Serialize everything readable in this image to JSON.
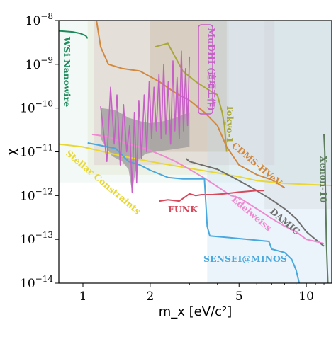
{
  "chart_data": {
    "type": "line",
    "title": "",
    "xlabel": "m_x [eV/c²]",
    "ylabel": "χ",
    "x_scale": "log",
    "y_scale": "log",
    "xlim": [
      0.78,
      13
    ],
    "ylim": [
      1e-14,
      1e-08
    ],
    "grid": false,
    "x_ticks": [
      {
        "value": 1,
        "label": "1"
      },
      {
        "value": 2,
        "label": "2"
      },
      {
        "value": 5,
        "label": "5"
      },
      {
        "value": 10,
        "label": "10"
      }
    ],
    "y_ticks": [
      {
        "value": 1e-08,
        "base": "10",
        "exp": "−8"
      },
      {
        "value": 1e-09,
        "base": "10",
        "exp": "−9"
      },
      {
        "value": 1e-10,
        "base": "10",
        "exp": "−10"
      },
      {
        "value": 1e-11,
        "base": "10",
        "exp": "−11"
      },
      {
        "value": 1e-12,
        "base": "10",
        "exp": "−12"
      },
      {
        "value": 1e-13,
        "base": "10",
        "exp": "−13"
      },
      {
        "value": 1e-14,
        "base": "10",
        "exp": "−14"
      }
    ],
    "excluded_regions": [
      {
        "color": "#2e9c6a",
        "opacity": 0.06,
        "x": [
          0.78,
          13
        ],
        "y_low": 2e-12
      },
      {
        "color": "#d1d5a8",
        "opacity": 0.22,
        "x": [
          1.05,
          4.5
        ],
        "y_low": 3e-12
      },
      {
        "color": "#c9a0a8",
        "opacity": 0.2,
        "x": [
          1.12,
          7.2
        ],
        "y_low": 5e-12
      },
      {
        "color": "#b08c70",
        "opacity": 0.22,
        "x": [
          2.0,
          4.4
        ],
        "y_low": 1e-11
      },
      {
        "color": "#c3bcb4",
        "opacity": 0.22,
        "x": [
          6.5,
          13
        ],
        "y_low": 5e-13
      },
      {
        "color": "#bcd9ef",
        "opacity": 0.3,
        "x": [
          3.6,
          13
        ],
        "y_low": 1e-14
      }
    ],
    "series": [
      {
        "name": "WSi Nanowire",
        "color": "#1d8a5c",
        "points": [
          [
            0.78,
            5.8e-09
          ],
          [
            0.9,
            5.5e-09
          ],
          [
            0.97,
            5.1e-09
          ],
          [
            1.03,
            4.5e-09
          ],
          [
            1.05,
            3.9e-09
          ]
        ]
      },
      {
        "name": "Tokyo-1",
        "color": "#a8a83a",
        "points": [
          [
            2.1,
            2.5e-09
          ],
          [
            2.4,
            3e-09
          ],
          [
            2.8,
            7e-10
          ],
          [
            3.2,
            4e-10
          ],
          [
            3.5,
            3e-10
          ],
          [
            3.7,
            2.5e-10
          ],
          [
            4.0,
            2e-10
          ],
          [
            4.2,
            8e-11
          ],
          [
            4.3,
            4e-11
          ],
          [
            4.4,
            1e-11
          ]
        ]
      },
      {
        "name": "CDMS-HVeV",
        "color": "#d2883e",
        "points": [
          [
            1.15,
            1e-08
          ],
          [
            1.2,
            2.5e-09
          ],
          [
            1.3,
            1e-09
          ],
          [
            1.5,
            8e-10
          ],
          [
            1.8,
            7e-10
          ],
          [
            2.2,
            4e-10
          ],
          [
            2.6,
            2.2e-10
          ],
          [
            3.0,
            1.5e-10
          ],
          [
            3.5,
            8e-11
          ],
          [
            4.0,
            4e-11
          ],
          [
            4.4,
            1.3e-11
          ],
          [
            5.0,
            5e-12
          ],
          [
            6.0,
            3e-12
          ],
          [
            7.0,
            2.3e-12
          ],
          [
            8.0,
            1.5e-12
          ]
        ]
      },
      {
        "name": "Stellar Constraints",
        "color": "#e8d735",
        "points": [
          [
            0.78,
            1.5e-11
          ],
          [
            1.0,
            1.3e-11
          ],
          [
            1.5,
            8e-12
          ],
          [
            2.0,
            6e-12
          ],
          [
            3.0,
            4.2e-12
          ],
          [
            4.0,
            3.3e-12
          ],
          [
            5.0,
            2.7e-12
          ],
          [
            6.0,
            2.2e-12
          ],
          [
            8.0,
            1.9e-12
          ],
          [
            10.0,
            1.8e-12
          ],
          [
            13.0,
            1.7e-12
          ]
        ]
      },
      {
        "name": "Xenon-10",
        "color": "#5e7d5e",
        "points": [
          [
            12.5,
            1e-14
          ],
          [
            12.4,
            3e-14
          ],
          [
            12.3,
            1e-13
          ],
          [
            12.2,
            1e-12
          ],
          [
            12.1,
            1e-11
          ],
          [
            12.0,
            2.5e-11
          ]
        ]
      },
      {
        "name": "DAMIC",
        "color": "#6f6f6f",
        "points": [
          [
            2.9,
            7e-12
          ],
          [
            3.0,
            6e-12
          ],
          [
            4.0,
            4e-12
          ],
          [
            5.0,
            2.2e-12
          ],
          [
            6.0,
            1.3e-12
          ],
          [
            7.0,
            8e-13
          ],
          [
            8.0,
            5e-13
          ],
          [
            9.0,
            3e-13
          ],
          [
            10.0,
            1.5e-13
          ],
          [
            11.0,
            1e-13
          ],
          [
            12.0,
            7e-14
          ]
        ]
      },
      {
        "name": "Edelweiss",
        "color": "#ee8ad0",
        "points": [
          [
            1.1,
            2.5e-11
          ],
          [
            1.3,
            2.2e-11
          ],
          [
            1.6,
            1.5e-11
          ],
          [
            1.9,
            1.2e-11
          ],
          [
            2.3,
            8e-12
          ],
          [
            2.6,
            6e-12
          ],
          [
            3.0,
            4e-12
          ],
          [
            3.5,
            2.5e-12
          ],
          [
            4.0,
            1.6e-12
          ],
          [
            4.6,
            1e-12
          ],
          [
            5.0,
            9e-13
          ],
          [
            6.0,
            5e-13
          ],
          [
            7.0,
            3e-13
          ],
          [
            8.0,
            2e-13
          ],
          [
            9.0,
            1.5e-13
          ],
          [
            10.0,
            1e-13
          ],
          [
            11.0,
            9e-14
          ],
          [
            12.0,
            8e-14
          ]
        ]
      },
      {
        "name": "FUNK",
        "color": "#d64a5c",
        "points": [
          [
            2.2,
            7.5e-13
          ],
          [
            2.4,
            8e-13
          ],
          [
            2.7,
            7.5e-13
          ],
          [
            3.0,
            1.1e-12
          ],
          [
            3.2,
            1e-12
          ],
          [
            3.4,
            1.05e-12
          ],
          [
            3.8,
            1.05e-12
          ],
          [
            4.3,
            1.1e-12
          ],
          [
            5.0,
            1.2e-12
          ],
          [
            6.0,
            1.3e-12
          ],
          [
            6.5,
            1.3e-12
          ]
        ]
      },
      {
        "name": "SENSEI@MINOS",
        "color": "#4aa8de",
        "points": [
          [
            1.05,
            1.6e-11
          ],
          [
            1.4,
            1.2e-11
          ],
          [
            1.6,
            6e-12
          ],
          [
            1.8,
            5e-12
          ],
          [
            2.0,
            3.8e-12
          ],
          [
            2.4,
            2.6e-12
          ],
          [
            2.8,
            2.4e-12
          ],
          [
            3.5,
            2.4e-12
          ],
          [
            3.6,
            2e-13
          ],
          [
            3.7,
            1.2e-13
          ],
          [
            4.5,
            1.1e-13
          ],
          [
            5.5,
            1e-13
          ],
          [
            6.8,
            9e-14
          ],
          [
            7.0,
            6e-14
          ],
          [
            8.0,
            5e-14
          ],
          [
            8.6,
            3.5e-14
          ],
          [
            9.0,
            2e-14
          ],
          [
            9.3,
            1e-14
          ]
        ]
      },
      {
        "name": "MuDHI (這項工作)",
        "color": "#c65fc6",
        "points": [
          [
            1.2,
            1.1e-10
          ],
          [
            1.28,
            6e-12
          ],
          [
            1.33,
            3e-10
          ],
          [
            1.38,
            1.5e-11
          ],
          [
            1.42,
            2e-10
          ],
          [
            1.47,
            5e-12
          ],
          [
            1.52,
            1.2e-10
          ],
          [
            1.57,
            1e-11
          ],
          [
            1.62,
            4e-11
          ],
          [
            1.66,
            1.2e-12
          ],
          [
            1.7,
            8e-11
          ],
          [
            1.74,
            2e-12
          ],
          [
            1.78,
            1.5e-10
          ],
          [
            1.83,
            7e-12
          ],
          [
            1.88,
            2e-10
          ],
          [
            1.93,
            1e-11
          ],
          [
            1.98,
            4e-10
          ],
          [
            2.03,
            2e-11
          ],
          [
            2.08,
            3e-10
          ],
          [
            2.13,
            3e-11
          ],
          [
            2.19,
            6e-10
          ],
          [
            2.24,
            2e-11
          ],
          [
            2.3,
            1e-09
          ],
          [
            2.35,
            2.5e-11
          ],
          [
            2.41,
            4e-10
          ],
          [
            2.47,
            1.5e-11
          ],
          [
            2.53,
            1.2e-09
          ],
          [
            2.58,
            3e-11
          ],
          [
            2.64,
            5e-10
          ],
          [
            2.7,
            2e-11
          ],
          [
            2.76,
            2e-09
          ],
          [
            2.82,
            3e-11
          ],
          [
            2.88,
            8e-10
          ],
          [
            2.94,
            4e-11
          ],
          [
            3.0,
            1.5e-09
          ]
        ]
      }
    ],
    "mudhi_band_low": [
      [
        1.2,
        2e-11
      ],
      [
        1.35,
        8e-12
      ],
      [
        1.5,
        6e-12
      ],
      [
        1.6,
        4e-12
      ],
      [
        1.66,
        1.2e-12
      ],
      [
        1.75,
        6e-12
      ],
      [
        1.9,
        9e-12
      ],
      [
        2.1,
        1e-11
      ],
      [
        2.4,
        1.1e-11
      ],
      [
        2.7,
        1.2e-11
      ],
      [
        3.0,
        1.3e-11
      ]
    ],
    "mudhi_band_high": [
      [
        1.2,
        1e-10
      ],
      [
        1.4,
        9e-11
      ],
      [
        1.6,
        6e-11
      ],
      [
        1.8,
        5e-11
      ],
      [
        2.0,
        4.5e-11
      ],
      [
        2.3,
        5e-11
      ],
      [
        2.6,
        6e-11
      ],
      [
        3.0,
        8e-11
      ]
    ],
    "labels": [
      {
        "key": "wsi",
        "text": "WSi Nanowire",
        "color": "#1d8a5c"
      },
      {
        "key": "mudhi",
        "text": "MuDHI (這項工作)",
        "color": "#c65fc6"
      },
      {
        "key": "tokyo",
        "text": "Tokyo-1",
        "color": "#a8a83a"
      },
      {
        "key": "cdms",
        "text": "CDMS-HVeV",
        "color": "#d2883e"
      },
      {
        "key": "stellar",
        "text": "Stellar Constraints",
        "color": "#e8d735"
      },
      {
        "key": "xenon",
        "text": "Xenon-10",
        "color": "#5e7d5e"
      },
      {
        "key": "funk",
        "text": "FUNK",
        "color": "#d64a5c"
      },
      {
        "key": "edelweiss",
        "text": "Edelweiss",
        "color": "#ee8ad0"
      },
      {
        "key": "damic",
        "text": "DAMIC",
        "color": "#6f6f6f"
      },
      {
        "key": "sensei",
        "text": "SENSEI@MINOS",
        "color": "#4aa8de"
      }
    ]
  }
}
